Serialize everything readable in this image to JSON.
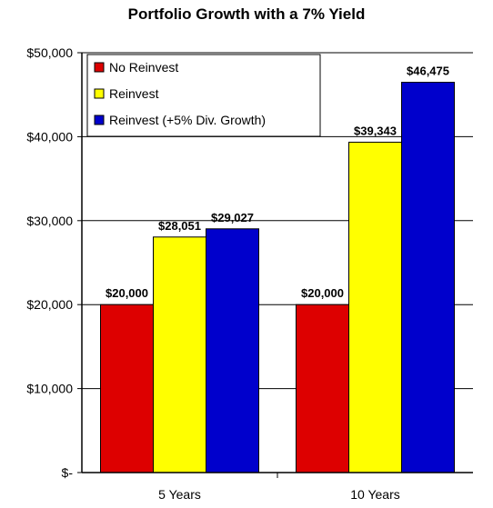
{
  "chart_data": {
    "type": "bar",
    "title": "Portfolio Growth with a 7% Yield",
    "xlabel": "",
    "ylabel": "",
    "categories": [
      "5 Years",
      "10 Years"
    ],
    "series": [
      {
        "name": "No Reinvest",
        "color": "#dd0000",
        "values": [
          20000,
          20000
        ],
        "labels": [
          "$20,000",
          "$20,000"
        ]
      },
      {
        "name": "Reinvest",
        "color": "#ffff00",
        "values": [
          28051,
          39343
        ],
        "labels": [
          "$28,051",
          "$39,343"
        ]
      },
      {
        "name": "Reinvest (+5% Div. Growth)",
        "color": "#0000cc",
        "values": [
          29027,
          46475
        ],
        "labels": [
          "$29,027",
          "$46,475"
        ]
      }
    ],
    "ylim": [
      0,
      50000
    ],
    "yticks": [
      0,
      10000,
      20000,
      30000,
      40000,
      50000
    ],
    "ytick_labels": [
      "$-",
      "$10,000",
      "$20,000",
      "$30,000",
      "$40,000",
      "$50,000"
    ],
    "grid": true,
    "legend_position": "top-left"
  }
}
